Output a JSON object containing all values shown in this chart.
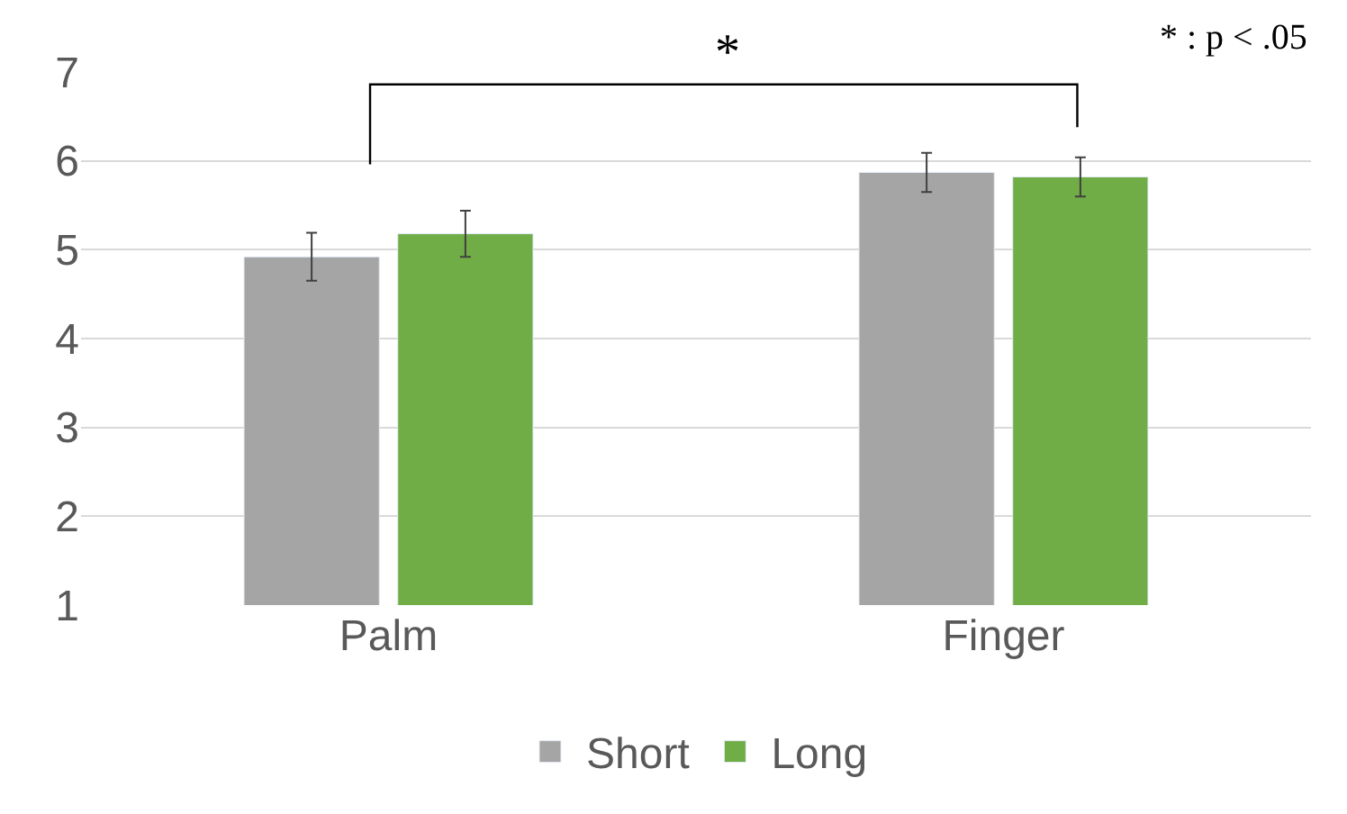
{
  "chart_data": {
    "type": "bar",
    "categories": [
      "Palm",
      "Finger"
    ],
    "series": [
      {
        "name": "Short",
        "color": "#a5a5a5",
        "values": [
          4.92,
          5.87
        ],
        "errors": [
          0.27,
          0.22
        ]
      },
      {
        "name": "Long",
        "color": "#70ad47",
        "values": [
          5.18,
          5.82
        ],
        "errors": [
          0.26,
          0.22
        ]
      }
    ],
    "ylim": [
      1,
      7
    ],
    "yticks": [
      1,
      2,
      3,
      4,
      5,
      6,
      7
    ],
    "grid": "y",
    "legend": "bottom",
    "annotations": [
      "*",
      "* : p < .05"
    ]
  }
}
